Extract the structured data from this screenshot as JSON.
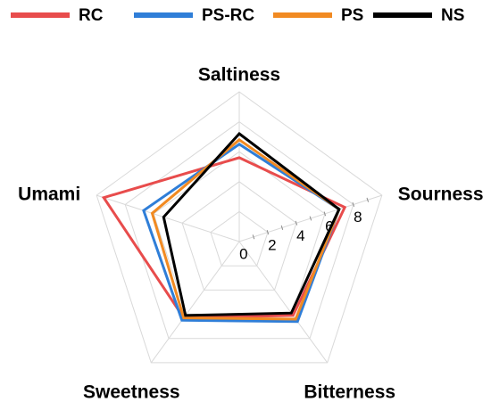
{
  "chart_data": {
    "type": "radar",
    "title": "",
    "axes": [
      "Saltiness",
      "Sourness",
      "Bitterness",
      "Sweetness",
      "Umami"
    ],
    "range": [
      0,
      10
    ],
    "ticks": [
      0,
      2,
      4,
      6,
      8
    ],
    "grid": true,
    "legend_position": "top",
    "series": [
      {
        "name": "RC",
        "color": "#e84c4c",
        "values": [
          5.6,
          7.4,
          6.1,
          6.3,
          9.5
        ]
      },
      {
        "name": "PS-RC",
        "color": "#2f7ed8",
        "values": [
          6.5,
          7.0,
          6.6,
          6.5,
          6.7
        ]
      },
      {
        "name": "PS",
        "color": "#f18a22",
        "values": [
          6.8,
          7.0,
          6.4,
          6.3,
          6.1
        ]
      },
      {
        "name": "NS",
        "color": "#000000",
        "values": [
          7.2,
          7.0,
          5.9,
          6.1,
          5.3
        ]
      }
    ]
  }
}
